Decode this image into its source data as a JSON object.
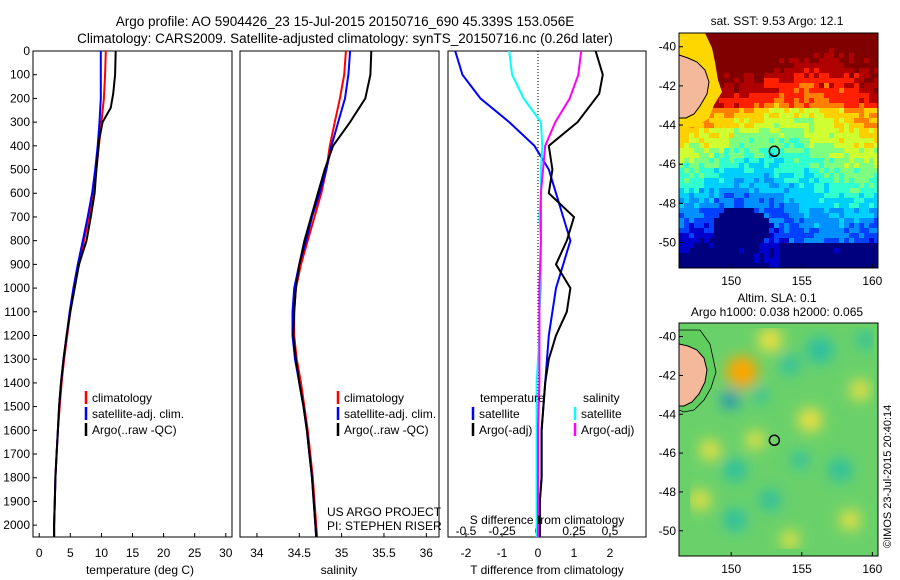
{
  "header": {
    "title_line1": "Argo profile: AO 5904426_23 15-Jul-2015 20150716_690 45.339S 153.056E",
    "title_line2": "Climatology: CARS2009. Satellite-adjusted climatology: synTS_20150716.nc (0.26d later)"
  },
  "colors": {
    "climatology": "#ff0000",
    "satellite": "#0000ff",
    "argo": "#000000",
    "sal_satellite": "#00ffff",
    "sal_argo": "#ff00ff",
    "land": "#f4b89a"
  },
  "chart_data": [
    {
      "id": "temperature",
      "type": "line",
      "xlabel": "temperature (deg C)",
      "xlim": [
        -1,
        31
      ],
      "xticks": [
        0,
        5,
        10,
        15,
        20,
        25,
        30
      ],
      "ylim": [
        2050,
        0
      ],
      "yticks": [
        0,
        100,
        200,
        300,
        400,
        500,
        600,
        700,
        800,
        900,
        1000,
        1100,
        1200,
        1300,
        1400,
        1500,
        1600,
        1700,
        1800,
        1900,
        2000
      ],
      "legend": [
        "climatology",
        "satellite-adj. clim.",
        "Argo(..raw -QC)"
      ],
      "series": [
        {
          "name": "climatology",
          "color": "#ff0000",
          "points": [
            [
              10.7,
              0
            ],
            [
              10.6,
              100
            ],
            [
              10.4,
              200
            ],
            [
              10.0,
              300
            ],
            [
              9.6,
              400
            ],
            [
              9.2,
              500
            ],
            [
              8.6,
              600
            ],
            [
              8.0,
              700
            ],
            [
              7.2,
              800
            ],
            [
              6.4,
              900
            ],
            [
              5.6,
              1000
            ],
            [
              5.0,
              1100
            ],
            [
              4.5,
              1200
            ],
            [
              4.0,
              1300
            ],
            [
              3.6,
              1400
            ],
            [
              3.3,
              1500
            ],
            [
              3.0,
              1600
            ],
            [
              2.8,
              1700
            ],
            [
              2.6,
              1800
            ],
            [
              2.5,
              1900
            ],
            [
              2.4,
              2000
            ],
            [
              2.4,
              2050
            ]
          ]
        },
        {
          "name": "satellite-adj. clim.",
          "color": "#0000ff",
          "points": [
            [
              9.9,
              0
            ],
            [
              9.9,
              100
            ],
            [
              9.9,
              200
            ],
            [
              9.7,
              300
            ],
            [
              9.4,
              400
            ],
            [
              9.0,
              500
            ],
            [
              8.5,
              600
            ],
            [
              7.8,
              700
            ],
            [
              7.0,
              800
            ],
            [
              6.2,
              900
            ],
            [
              5.5,
              1000
            ],
            [
              4.9,
              1100
            ],
            [
              4.4,
              1200
            ],
            [
              3.9,
              1300
            ],
            [
              3.5,
              1400
            ],
            [
              3.2,
              1500
            ],
            [
              3.0,
              1600
            ],
            [
              2.8,
              1700
            ],
            [
              2.6,
              1800
            ],
            [
              2.5,
              1900
            ],
            [
              2.4,
              2000
            ],
            [
              2.4,
              2050
            ]
          ]
        },
        {
          "name": "Argo(..raw -QC)",
          "color": "#000000",
          "points": [
            [
              12.3,
              0
            ],
            [
              12.2,
              100
            ],
            [
              11.9,
              180
            ],
            [
              11.5,
              240
            ],
            [
              10.2,
              300
            ],
            [
              9.6,
              380
            ],
            [
              9.2,
              500
            ],
            [
              8.9,
              600
            ],
            [
              8.3,
              700
            ],
            [
              7.6,
              800
            ],
            [
              6.4,
              900
            ],
            [
              5.7,
              1000
            ],
            [
              5.0,
              1100
            ],
            [
              4.4,
              1200
            ],
            [
              3.9,
              1300
            ],
            [
              3.5,
              1400
            ],
            [
              3.2,
              1500
            ],
            [
              3.0,
              1600
            ],
            [
              2.8,
              1700
            ],
            [
              2.6,
              1800
            ],
            [
              2.5,
              1900
            ],
            [
              2.4,
              2000
            ],
            [
              2.4,
              2050
            ]
          ]
        }
      ]
    },
    {
      "id": "salinity",
      "type": "line",
      "xlabel": "salinity",
      "xlim": [
        33.8,
        36.15
      ],
      "xticks": [
        34,
        34.5,
        35,
        35.5,
        36
      ],
      "ylim": [
        2050,
        0
      ],
      "legend": [
        "climatology",
        "satellite-adj. clim.",
        "Argo(..raw -QC)"
      ],
      "annotation": [
        "US ARGO PROJECT",
        "PI: STEPHEN RISER"
      ],
      "series": [
        {
          "name": "climatology",
          "color": "#ff0000",
          "points": [
            [
              35.05,
              0
            ],
            [
              35.03,
              100
            ],
            [
              34.98,
              200
            ],
            [
              34.92,
              300
            ],
            [
              34.86,
              400
            ],
            [
              34.82,
              500
            ],
            [
              34.76,
              600
            ],
            [
              34.68,
              700
            ],
            [
              34.6,
              800
            ],
            [
              34.52,
              900
            ],
            [
              34.46,
              1000
            ],
            [
              34.44,
              1100
            ],
            [
              34.44,
              1200
            ],
            [
              34.47,
              1300
            ],
            [
              34.52,
              1400
            ],
            [
              34.56,
              1500
            ],
            [
              34.6,
              1600
            ],
            [
              34.63,
              1700
            ],
            [
              34.66,
              1800
            ],
            [
              34.68,
              1900
            ],
            [
              34.7,
              2000
            ],
            [
              34.71,
              2050
            ]
          ]
        },
        {
          "name": "satellite-adj. clim.",
          "color": "#0000ff",
          "points": [
            [
              35.1,
              0
            ],
            [
              35.08,
              100
            ],
            [
              35.04,
              200
            ],
            [
              34.96,
              300
            ],
            [
              34.88,
              400
            ],
            [
              34.82,
              500
            ],
            [
              34.74,
              600
            ],
            [
              34.65,
              700
            ],
            [
              34.58,
              800
            ],
            [
              34.5,
              900
            ],
            [
              34.44,
              1000
            ],
            [
              34.42,
              1100
            ],
            [
              34.42,
              1200
            ],
            [
              34.45,
              1300
            ],
            [
              34.5,
              1400
            ],
            [
              34.55,
              1500
            ],
            [
              34.59,
              1600
            ],
            [
              34.62,
              1700
            ],
            [
              34.65,
              1800
            ],
            [
              34.67,
              1900
            ],
            [
              34.69,
              2000
            ],
            [
              34.7,
              2050
            ]
          ]
        },
        {
          "name": "Argo(..raw -QC)",
          "color": "#000000",
          "points": [
            [
              35.35,
              0
            ],
            [
              35.34,
              100
            ],
            [
              35.28,
              200
            ],
            [
              35.1,
              300
            ],
            [
              34.9,
              400
            ],
            [
              34.8,
              500
            ],
            [
              34.72,
              600
            ],
            [
              34.64,
              700
            ],
            [
              34.56,
              800
            ],
            [
              34.5,
              900
            ],
            [
              34.46,
              1000
            ],
            [
              34.44,
              1100
            ],
            [
              34.43,
              1200
            ],
            [
              34.46,
              1300
            ],
            [
              34.5,
              1400
            ],
            [
              34.55,
              1500
            ],
            [
              34.59,
              1600
            ],
            [
              34.62,
              1700
            ],
            [
              34.65,
              1800
            ],
            [
              34.67,
              1900
            ],
            [
              34.69,
              2000
            ],
            [
              34.7,
              2050
            ]
          ]
        }
      ]
    },
    {
      "id": "difference",
      "type": "line",
      "xlabel": "T difference from climatology",
      "xlabel_top": "S difference from climatology",
      "xlim": [
        -2.5,
        3
      ],
      "xticks": [
        -2,
        -1,
        0,
        1,
        2
      ],
      "xticks_s": [
        "-0.5",
        "-0.25",
        "0",
        "0.25",
        "0.5"
      ],
      "ylim": [
        2050,
        0
      ],
      "legend_left_title": "temperature",
      "legend_right_title": "salinity",
      "legend": [
        "satellite",
        "Argo(-adj)",
        "satellite",
        "Argo(-adj)"
      ],
      "series": [
        {
          "name": "T satellite",
          "color": "#0000ff",
          "points": [
            [
              -2.3,
              0
            ],
            [
              -2.1,
              100
            ],
            [
              -1.6,
              200
            ],
            [
              -0.8,
              300
            ],
            [
              -0.1,
              400
            ],
            [
              0.3,
              500
            ],
            [
              0.5,
              600
            ],
            [
              0.7,
              700
            ],
            [
              0.9,
              800
            ],
            [
              0.7,
              900
            ],
            [
              0.5,
              1000
            ],
            [
              0.4,
              1100
            ],
            [
              0.3,
              1200
            ],
            [
              0.25,
              1300
            ],
            [
              0.2,
              1400
            ],
            [
              0.15,
              1500
            ],
            [
              0.1,
              1600
            ],
            [
              0.1,
              1700
            ],
            [
              0.1,
              1800
            ],
            [
              0.05,
              1900
            ],
            [
              0.05,
              2000
            ],
            [
              0.05,
              2050
            ]
          ]
        },
        {
          "name": "T Argo(-adj)",
          "color": "#000000",
          "points": [
            [
              1.6,
              0
            ],
            [
              1.8,
              100
            ],
            [
              1.7,
              180
            ],
            [
              1.1,
              300
            ],
            [
              0.3,
              400
            ],
            [
              0.4,
              500
            ],
            [
              0.3,
              600
            ],
            [
              1.0,
              700
            ],
            [
              0.8,
              800
            ],
            [
              0.5,
              900
            ],
            [
              0.9,
              1000
            ],
            [
              0.8,
              1100
            ],
            [
              0.5,
              1200
            ],
            [
              0.3,
              1300
            ],
            [
              0.2,
              1400
            ],
            [
              0.15,
              1500
            ],
            [
              0.1,
              1600
            ],
            [
              0.1,
              1700
            ],
            [
              0.1,
              1800
            ],
            [
              0.05,
              1900
            ],
            [
              0.05,
              2000
            ],
            [
              0.05,
              2050
            ]
          ]
        },
        {
          "name": "S satellite",
          "color": "#00ffff",
          "points": [
            [
              -0.2,
              0
            ],
            [
              -0.18,
              100
            ],
            [
              -0.1,
              200
            ],
            [
              0.02,
              300
            ],
            [
              0.03,
              400
            ],
            [
              0.02,
              500
            ],
            [
              0.02,
              600
            ],
            [
              0.01,
              700
            ],
            [
              0.02,
              800
            ],
            [
              0.02,
              900
            ],
            [
              0.02,
              1000
            ],
            [
              0.01,
              1100
            ],
            [
              0.01,
              1200
            ],
            [
              0.0,
              1300
            ],
            [
              -0.01,
              1400
            ],
            [
              -0.01,
              1500
            ],
            [
              -0.01,
              1600
            ],
            [
              -0.01,
              1700
            ],
            [
              -0.01,
              1800
            ],
            [
              -0.01,
              1900
            ],
            [
              -0.01,
              2000
            ],
            [
              -0.01,
              2050
            ]
          ]
        },
        {
          "name": "S Argo(-adj)",
          "color": "#ff00ff",
          "points": [
            [
              0.3,
              0
            ],
            [
              0.28,
              100
            ],
            [
              0.22,
              200
            ],
            [
              0.12,
              300
            ],
            [
              0.05,
              400
            ],
            [
              0.02,
              600
            ],
            [
              0.02,
              800
            ],
            [
              0.01,
              1000
            ],
            [
              0.01,
              1200
            ],
            [
              0.01,
              1400
            ],
            [
              0.0,
              1600
            ],
            [
              0.0,
              1800
            ],
            [
              0.0,
              2000
            ],
            [
              0.0,
              2050
            ]
          ]
        }
      ]
    },
    {
      "id": "sst_map",
      "type": "heatmap",
      "title": "sat. SST: 9.53  Argo: 12.1",
      "xticks": [
        150,
        155,
        160
      ],
      "yticks": [
        -40,
        -42,
        -44,
        -46,
        -48,
        -50
      ],
      "xlim": [
        146.3,
        160.4
      ],
      "ylim": [
        -51.3,
        -39.3
      ],
      "float_position": [
        153.056,
        -45.339
      ]
    },
    {
      "id": "sla_map",
      "type": "heatmap",
      "title": "Altim. SLA: 0.1",
      "subtitle": "Argo h1000: 0.038 h2000: 0.065",
      "xticks": [
        150,
        155,
        160
      ],
      "yticks": [
        -40,
        -42,
        -44,
        -46,
        -48,
        -50
      ],
      "xlim": [
        146.3,
        160.4
      ],
      "ylim": [
        -51.3,
        -39.3
      ],
      "float_position": [
        153.056,
        -45.339
      ]
    }
  ],
  "stamp": "©IMOS 23-Jul-2015 20:40:14"
}
